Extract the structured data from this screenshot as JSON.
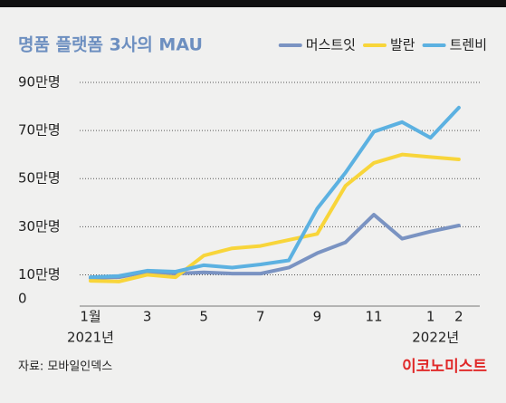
{
  "chart_data": {
    "type": "line",
    "title": "명품 플랫폼 3사의 MAU",
    "categories": [
      "1월",
      null,
      "3",
      null,
      "5",
      null,
      "7",
      null,
      "9",
      null,
      "11",
      null,
      "1",
      "2"
    ],
    "year_labels": [
      "2021년",
      "2022년"
    ],
    "series": [
      {
        "name": "머스트잇",
        "color": "#7a93c2",
        "values": [
          8.7,
          9,
          11.3,
          10.5,
          11,
          10.5,
          10.5,
          13,
          19,
          23.5,
          35,
          25,
          28,
          30.5
        ]
      },
      {
        "name": "발란",
        "color": "#f8d53a",
        "values": [
          7.5,
          7.2,
          10,
          9,
          18,
          21,
          22,
          24.5,
          27,
          47,
          56.5,
          60,
          59,
          58
        ]
      },
      {
        "name": "트렌비",
        "color": "#5cb1e1",
        "values": [
          9,
          9.5,
          11.7,
          11.3,
          14,
          13,
          14.3,
          16,
          37.5,
          52.5,
          69.5,
          73.5,
          67,
          79.5
        ]
      }
    ],
    "ylim": [
      0,
      90
    ],
    "yticks": [
      0,
      {
        "value": 10,
        "label": "10만명"
      },
      {
        "value": 30,
        "label": "30만명"
      },
      {
        "value": 50,
        "label": "50만명"
      },
      {
        "value": 70,
        "label": "70만명"
      },
      {
        "value": 90,
        "label": "90만명"
      }
    ],
    "grid": true,
    "legend": "top-right"
  },
  "footer": {
    "source": "자료: 모바일인덱스",
    "brand": "이코노미스트"
  }
}
